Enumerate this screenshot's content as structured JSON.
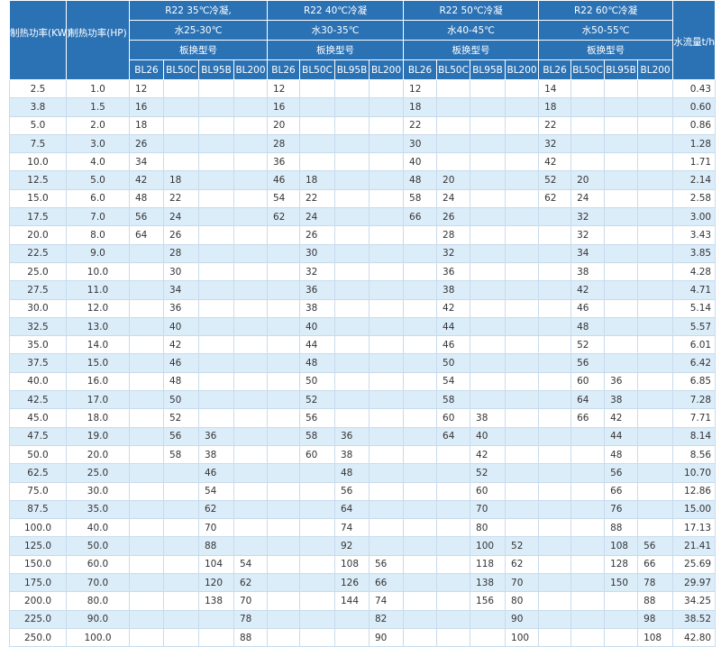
{
  "table": {
    "headers": {
      "kw": "制热功率(KW)",
      "hp": "制热功率(HP)",
      "flow": "水流量t/h",
      "groups": [
        {
          "line1": "R22 35℃冷凝,",
          "line2": "水25-30℃",
          "line3": "板换型号"
        },
        {
          "line1": "R22 40℃冷凝",
          "line2": "水30-35℃",
          "line3": "板换型号"
        },
        {
          "line1": "R22 50℃冷凝",
          "line2": "水40-45℃",
          "line3": "板换型号"
        },
        {
          "line1": "R22 60℃冷凝",
          "line2": "水50-55℃",
          "line3": "板换型号"
        }
      ],
      "models": [
        "BL26",
        "BL50C",
        "BL95B",
        "BL200"
      ]
    },
    "rows": [
      [
        "2.5",
        "1.0",
        "12",
        null,
        null,
        null,
        "12",
        null,
        null,
        null,
        "12",
        null,
        null,
        null,
        "14",
        null,
        null,
        null,
        "0.43"
      ],
      [
        "3.8",
        "1.5",
        "16",
        null,
        null,
        null,
        "16",
        null,
        null,
        null,
        "18",
        null,
        null,
        null,
        "18",
        null,
        null,
        null,
        "0.60"
      ],
      [
        "5.0",
        "2.0",
        "18",
        null,
        null,
        null,
        "20",
        null,
        null,
        null,
        "22",
        null,
        null,
        null,
        "22",
        null,
        null,
        null,
        "0.86"
      ],
      [
        "7.5",
        "3.0",
        "26",
        null,
        null,
        null,
        "28",
        null,
        null,
        null,
        "30",
        null,
        null,
        null,
        "32",
        null,
        null,
        null,
        "1.28"
      ],
      [
        "10.0",
        "4.0",
        "34",
        null,
        null,
        null,
        "36",
        null,
        null,
        null,
        "40",
        null,
        null,
        null,
        "42",
        null,
        null,
        null,
        "1.71"
      ],
      [
        "12.5",
        "5.0",
        "42",
        "18",
        null,
        null,
        "46",
        "18",
        null,
        null,
        "48",
        "20",
        null,
        null,
        "52",
        "20",
        null,
        null,
        "2.14"
      ],
      [
        "15.0",
        "6.0",
        "48",
        "22",
        null,
        null,
        "54",
        "22",
        null,
        null,
        "58",
        "24",
        null,
        null,
        "62",
        "24",
        null,
        null,
        "2.58"
      ],
      [
        "17.5",
        "7.0",
        "56",
        "24",
        null,
        null,
        "62",
        "24",
        null,
        null,
        "66",
        "26",
        null,
        null,
        null,
        "32",
        null,
        null,
        "3.00"
      ],
      [
        "20.0",
        "8.0",
        "64",
        "26",
        null,
        null,
        null,
        "26",
        null,
        null,
        null,
        "28",
        null,
        null,
        null,
        "32",
        null,
        null,
        "3.43"
      ],
      [
        "22.5",
        "9.0",
        null,
        "28",
        null,
        null,
        null,
        "30",
        null,
        null,
        null,
        "32",
        null,
        null,
        null,
        "34",
        null,
        null,
        "3.85"
      ],
      [
        "25.0",
        "10.0",
        null,
        "30",
        null,
        null,
        null,
        "32",
        null,
        null,
        null,
        "36",
        null,
        null,
        null,
        "38",
        null,
        null,
        "4.28"
      ],
      [
        "27.5",
        "11.0",
        null,
        "34",
        null,
        null,
        null,
        "36",
        null,
        null,
        null,
        "38",
        null,
        null,
        null,
        "42",
        null,
        null,
        "4.71"
      ],
      [
        "30.0",
        "12.0",
        null,
        "36",
        null,
        null,
        null,
        "38",
        null,
        null,
        null,
        "42",
        null,
        null,
        null,
        "46",
        null,
        null,
        "5.14"
      ],
      [
        "32.5",
        "13.0",
        null,
        "40",
        null,
        null,
        null,
        "40",
        null,
        null,
        null,
        "44",
        null,
        null,
        null,
        "48",
        null,
        null,
        "5.57"
      ],
      [
        "35.0",
        "14.0",
        null,
        "42",
        null,
        null,
        null,
        "44",
        null,
        null,
        null,
        "46",
        null,
        null,
        null,
        "52",
        null,
        null,
        "6.01"
      ],
      [
        "37.5",
        "15.0",
        null,
        "46",
        null,
        null,
        null,
        "48",
        null,
        null,
        null,
        "50",
        null,
        null,
        null,
        "56",
        null,
        null,
        "6.42"
      ],
      [
        "40.0",
        "16.0",
        null,
        "48",
        null,
        null,
        null,
        "50",
        null,
        null,
        null,
        "54",
        null,
        null,
        null,
        "60",
        "36",
        null,
        "6.85"
      ],
      [
        "42.5",
        "17.0",
        null,
        "50",
        null,
        null,
        null,
        "52",
        null,
        null,
        null,
        "58",
        null,
        null,
        null,
        "64",
        "38",
        null,
        "7.28"
      ],
      [
        "45.0",
        "18.0",
        null,
        "52",
        null,
        null,
        null,
        "56",
        null,
        null,
        null,
        "60",
        "38",
        null,
        null,
        "66",
        "42",
        null,
        "7.71"
      ],
      [
        "47.5",
        "19.0",
        null,
        "56",
        "36",
        null,
        null,
        "58",
        "36",
        null,
        null,
        "64",
        "40",
        null,
        null,
        null,
        "44",
        null,
        "8.14"
      ],
      [
        "50.0",
        "20.0",
        null,
        "58",
        "38",
        null,
        null,
        "60",
        "38",
        null,
        null,
        null,
        "42",
        null,
        null,
        null,
        "48",
        null,
        "8.56"
      ],
      [
        "62.5",
        "25.0",
        null,
        null,
        "46",
        null,
        null,
        null,
        "48",
        null,
        null,
        null,
        "52",
        null,
        null,
        null,
        "56",
        null,
        "10.70"
      ],
      [
        "75.0",
        "30.0",
        null,
        null,
        "54",
        null,
        null,
        null,
        "56",
        null,
        null,
        null,
        "60",
        null,
        null,
        null,
        "66",
        null,
        "12.86"
      ],
      [
        "87.5",
        "35.0",
        null,
        null,
        "62",
        null,
        null,
        null,
        "64",
        null,
        null,
        null,
        "70",
        null,
        null,
        null,
        "76",
        null,
        "15.00"
      ],
      [
        "100.0",
        "40.0",
        null,
        null,
        "70",
        null,
        null,
        null,
        "74",
        null,
        null,
        null,
        "80",
        null,
        null,
        null,
        "88",
        null,
        "17.13"
      ],
      [
        "125.0",
        "50.0",
        null,
        null,
        "88",
        null,
        null,
        null,
        "92",
        null,
        null,
        null,
        "100",
        "52",
        null,
        null,
        "108",
        "56",
        "21.41"
      ],
      [
        "150.0",
        "60.0",
        null,
        null,
        "104",
        "54",
        null,
        null,
        "108",
        "56",
        null,
        null,
        "118",
        "62",
        null,
        null,
        "128",
        "66",
        "25.69"
      ],
      [
        "175.0",
        "70.0",
        null,
        null,
        "120",
        "62",
        null,
        null,
        "126",
        "66",
        null,
        null,
        "138",
        "70",
        null,
        null,
        "150",
        "78",
        "29.97"
      ],
      [
        "200.0",
        "80.0",
        null,
        null,
        "138",
        "70",
        null,
        null,
        "144",
        "74",
        null,
        null,
        "156",
        "80",
        null,
        null,
        null,
        "88",
        "34.25"
      ],
      [
        "225.0",
        "90.0",
        null,
        null,
        null,
        "78",
        null,
        null,
        null,
        "82",
        null,
        null,
        null,
        "90",
        null,
        null,
        null,
        "98",
        "38.52"
      ],
      [
        "250.0",
        "100.0",
        null,
        null,
        null,
        "88",
        null,
        null,
        null,
        "90",
        null,
        null,
        null,
        "100",
        null,
        null,
        null,
        "108",
        "42.80"
      ]
    ]
  }
}
